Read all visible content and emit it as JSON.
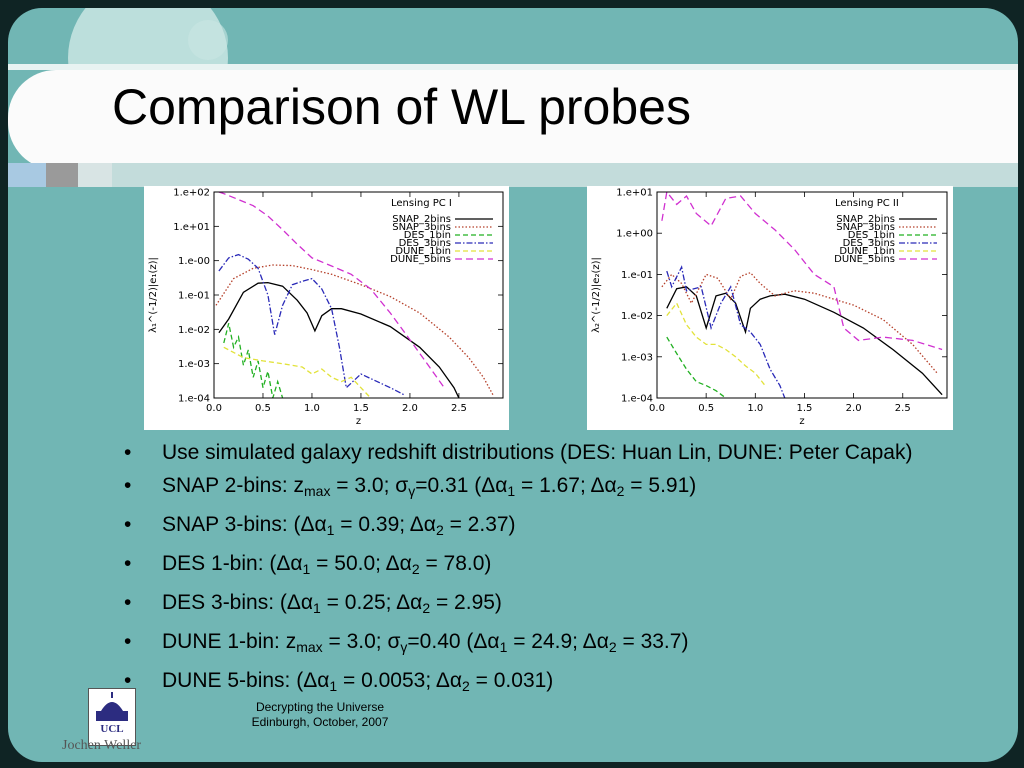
{
  "slide": {
    "title": "Comparison of WL probes",
    "footer": {
      "line1": "Decrypting the Universe",
      "line2": "Edinburgh, October, 2007"
    },
    "logo_text": "UCL",
    "author": "Jochen Weller",
    "colors": {
      "background": "#71b6b4",
      "title_band": "#fbfbfb",
      "frame": "#0f2424"
    }
  },
  "bullets": [
    {
      "parts": [
        {
          "t": "Use simulated galaxy redshift distributions (DES: Huan Lin, DUNE: Peter Capak)"
        }
      ]
    },
    {
      "parts": [
        {
          "t": "SNAP 2-bins: z"
        },
        {
          "t": "max",
          "sub": true
        },
        {
          "t": " = 3.0; σ"
        },
        {
          "t": "γ",
          "sub": true
        },
        {
          "t": "=0.31 (Δα"
        },
        {
          "t": "1",
          "sub": true
        },
        {
          "t": " = 1.67; Δα"
        },
        {
          "t": "2",
          "sub": true
        },
        {
          "t": " = 5.91)"
        }
      ]
    },
    {
      "parts": [
        {
          "t": "SNAP 3-bins: (Δα"
        },
        {
          "t": "1",
          "sub": true
        },
        {
          "t": " = 0.39; Δα"
        },
        {
          "t": "2",
          "sub": true
        },
        {
          "t": " = 2.37)"
        }
      ]
    },
    {
      "parts": [
        {
          "t": "DES 1-bin: (Δα"
        },
        {
          "t": "1",
          "sub": true
        },
        {
          "t": " = 50.0; Δα"
        },
        {
          "t": "2",
          "sub": true
        },
        {
          "t": " = 78.0)"
        }
      ]
    },
    {
      "parts": [
        {
          "t": "DES 3-bins: (Δα"
        },
        {
          "t": "1",
          "sub": true
        },
        {
          "t": " = 0.25; Δα"
        },
        {
          "t": "2",
          "sub": true
        },
        {
          "t": " = 2.95)"
        }
      ]
    },
    {
      "parts": [
        {
          "t": "DUNE 1-bin: z"
        },
        {
          "t": "max",
          "sub": true
        },
        {
          "t": " = 3.0; σ"
        },
        {
          "t": "γ",
          "sub": true
        },
        {
          "t": "=0.40 (Δα"
        },
        {
          "t": "1",
          "sub": true
        },
        {
          "t": " = 24.9; Δα"
        },
        {
          "t": "2",
          "sub": true
        },
        {
          "t": " = 33.7)"
        }
      ]
    },
    {
      "parts": [
        {
          "t": "DUNE 5-bins: (Δα"
        },
        {
          "t": "1",
          "sub": true
        },
        {
          "t": " = 0.0053; Δα"
        },
        {
          "t": "2",
          "sub": true
        },
        {
          "t": " = 0.031)"
        }
      ]
    }
  ],
  "chart_data": [
    {
      "type": "line",
      "title": "Lensing PC I",
      "xlabel": "z",
      "ylabel": "λ₁^(-1/2)|e₁(z)|",
      "ylog": true,
      "ylim": [
        0.0001,
        100
      ],
      "xlim": [
        0,
        2.95
      ],
      "xticks": [
        "0.0",
        "0.5",
        "1.0",
        "1.5",
        "2.0",
        "2.5"
      ],
      "xtick_values": [
        0,
        0.5,
        1.0,
        1.5,
        2.0,
        2.5
      ],
      "yticks": [
        "1.e-04",
        "1.e-03",
        "1.e-02",
        "1.e-01",
        "1.e-00",
        "1.e+01",
        "1.e+02"
      ],
      "ytick_values": [
        0.0001,
        0.001,
        0.01,
        0.1,
        1,
        10,
        100
      ],
      "legend_position": "top-right",
      "series": [
        {
          "name": "SNAP_2bins",
          "color": "#000000",
          "dash": "",
          "x": [
            0.05,
            0.15,
            0.3,
            0.45,
            0.55,
            0.7,
            0.85,
            0.95,
            1.03,
            1.1,
            1.2,
            1.3,
            1.5,
            1.8,
            2.1,
            2.3,
            2.45,
            2.5
          ],
          "y": [
            0.008,
            0.02,
            0.12,
            0.22,
            0.23,
            0.18,
            0.07,
            0.03,
            0.009,
            0.025,
            0.04,
            0.04,
            0.028,
            0.012,
            0.003,
            0.0008,
            0.0002,
            0.0001
          ]
        },
        {
          "name": "SNAP_3bins",
          "color": "#b5402a",
          "dash": "1.5,2",
          "x": [
            0.02,
            0.2,
            0.4,
            0.6,
            0.8,
            1.0,
            1.2,
            1.5,
            1.8,
            2.1,
            2.4,
            2.6,
            2.75,
            2.85
          ],
          "y": [
            0.05,
            0.3,
            0.6,
            0.75,
            0.72,
            0.55,
            0.4,
            0.2,
            0.09,
            0.03,
            0.006,
            0.0015,
            0.0004,
            0.00012
          ]
        },
        {
          "name": "DES_1bin",
          "color": "#22b022",
          "dash": "5,3",
          "x": [
            0.1,
            0.15,
            0.2,
            0.25,
            0.3,
            0.35,
            0.4,
            0.45,
            0.5,
            0.55,
            0.6,
            0.65,
            0.7
          ],
          "y": [
            0.004,
            0.015,
            0.003,
            0.006,
            0.0009,
            0.0025,
            0.0004,
            0.0012,
            0.0002,
            0.0006,
            0.0001,
            0.0003,
            0.0001
          ]
        },
        {
          "name": "DES_3bins",
          "color": "#2a2ab8",
          "dash": "6,2,1.5,2",
          "x": [
            0.05,
            0.15,
            0.25,
            0.35,
            0.45,
            0.55,
            0.62,
            0.7,
            0.8,
            0.9,
            1.0,
            1.1,
            1.2,
            1.28,
            1.35,
            1.5,
            1.8,
            1.95
          ],
          "y": [
            0.5,
            1.2,
            1.5,
            1.1,
            0.6,
            0.1,
            0.007,
            0.05,
            0.2,
            0.25,
            0.3,
            0.15,
            0.04,
            0.003,
            0.0002,
            0.0005,
            0.0002,
            0.00012
          ]
        },
        {
          "name": "DUNE_1bin",
          "color": "#e2e23a",
          "dash": "5,3",
          "x": [
            0.1,
            0.3,
            0.5,
            0.7,
            0.9,
            1.0,
            1.1,
            1.2,
            1.3,
            1.4,
            1.5,
            1.6
          ],
          "y": [
            0.003,
            0.0015,
            0.0012,
            0.001,
            0.0008,
            0.0005,
            0.0007,
            0.0004,
            0.0003,
            0.0004,
            0.0002,
            0.0001
          ]
        },
        {
          "name": "DUNE_5bins",
          "color": "#d030d0",
          "dash": "7,4",
          "x": [
            0.05,
            0.1,
            0.25,
            0.4,
            0.55,
            0.7,
            0.85,
            1.0,
            1.2,
            1.4,
            1.6,
            1.8,
            2.0,
            2.2,
            2.35
          ],
          "y": [
            100,
            90,
            60,
            40,
            20,
            8,
            3,
            1.2,
            0.7,
            0.4,
            0.15,
            0.03,
            0.005,
            0.0008,
            0.0002
          ]
        }
      ]
    },
    {
      "type": "line",
      "title": "Lensing PC II",
      "xlabel": "z",
      "ylabel": "λ₂^(-1/2)|e₂(z)|",
      "ylog": true,
      "ylim": [
        0.0001,
        10
      ],
      "xlim": [
        0,
        2.95
      ],
      "xticks": [
        "0.0",
        "0.5",
        "1.0",
        "1.5",
        "2.0",
        "2.5"
      ],
      "xtick_values": [
        0,
        0.5,
        1.0,
        1.5,
        2.0,
        2.5
      ],
      "yticks": [
        "1.e-04",
        "1.e-03",
        "1.e-02",
        "1.e-01",
        "1.e+00",
        "1.e+01"
      ],
      "ytick_values": [
        0.0001,
        0.001,
        0.01,
        0.1,
        1,
        10
      ],
      "legend_position": "top-right",
      "series": [
        {
          "name": "SNAP_2bins",
          "color": "#000000",
          "dash": "",
          "x": [
            0.1,
            0.2,
            0.3,
            0.4,
            0.5,
            0.6,
            0.7,
            0.8,
            0.9,
            0.95,
            1.05,
            1.15,
            1.3,
            1.5,
            1.8,
            2.1,
            2.4,
            2.7,
            2.9
          ],
          "y": [
            0.015,
            0.045,
            0.05,
            0.03,
            0.005,
            0.03,
            0.035,
            0.02,
            0.004,
            0.015,
            0.025,
            0.03,
            0.033,
            0.025,
            0.012,
            0.005,
            0.0015,
            0.0004,
            0.00012
          ]
        },
        {
          "name": "SNAP_3bins",
          "color": "#b5402a",
          "dash": "1.5,2",
          "x": [
            0.05,
            0.15,
            0.25,
            0.35,
            0.5,
            0.62,
            0.75,
            0.85,
            0.95,
            1.05,
            1.2,
            1.4,
            1.6,
            1.8,
            2.0,
            2.3,
            2.6,
            2.85
          ],
          "y": [
            0.05,
            0.1,
            0.06,
            0.02,
            0.1,
            0.08,
            0.025,
            0.09,
            0.11,
            0.06,
            0.03,
            0.04,
            0.035,
            0.025,
            0.018,
            0.008,
            0.002,
            0.0004
          ]
        },
        {
          "name": "DES_1bin",
          "color": "#22b022",
          "dash": "5,3",
          "x": [
            0.1,
            0.2,
            0.3,
            0.4,
            0.5,
            0.6,
            0.7
          ],
          "y": [
            0.003,
            0.0012,
            0.0005,
            0.00025,
            0.0002,
            0.00015,
            0.0001
          ]
        },
        {
          "name": "DES_3bins",
          "color": "#2a2ab8",
          "dash": "6,2,1.5,2",
          "x": [
            0.1,
            0.15,
            0.25,
            0.3,
            0.45,
            0.55,
            0.65,
            0.75,
            0.85,
            0.95,
            1.05,
            1.15,
            1.25,
            1.3
          ],
          "y": [
            0.12,
            0.05,
            0.15,
            0.04,
            0.05,
            0.005,
            0.02,
            0.05,
            0.006,
            0.004,
            0.002,
            0.0005,
            0.0002,
            0.0001
          ]
        },
        {
          "name": "DUNE_1bin",
          "color": "#e2e23a",
          "dash": "5,3",
          "x": [
            0.1,
            0.2,
            0.3,
            0.4,
            0.5,
            0.6,
            0.7,
            0.8,
            0.9,
            1.0,
            1.1
          ],
          "y": [
            0.01,
            0.02,
            0.006,
            0.003,
            0.002,
            0.002,
            0.0015,
            0.001,
            0.0006,
            0.0004,
            0.0002
          ]
        },
        {
          "name": "DUNE_5bins",
          "color": "#d030d0",
          "dash": "7,4",
          "x": [
            0.05,
            0.1,
            0.2,
            0.3,
            0.4,
            0.55,
            0.7,
            0.85,
            1.0,
            1.2,
            1.4,
            1.6,
            1.8,
            1.9,
            2.05,
            2.3,
            2.6,
            2.9
          ],
          "y": [
            2,
            10,
            5,
            8,
            3,
            1.5,
            7,
            8,
            3,
            1.2,
            0.4,
            0.1,
            0.05,
            0.005,
            0.0025,
            0.003,
            0.0025,
            0.0015
          ]
        }
      ]
    }
  ]
}
